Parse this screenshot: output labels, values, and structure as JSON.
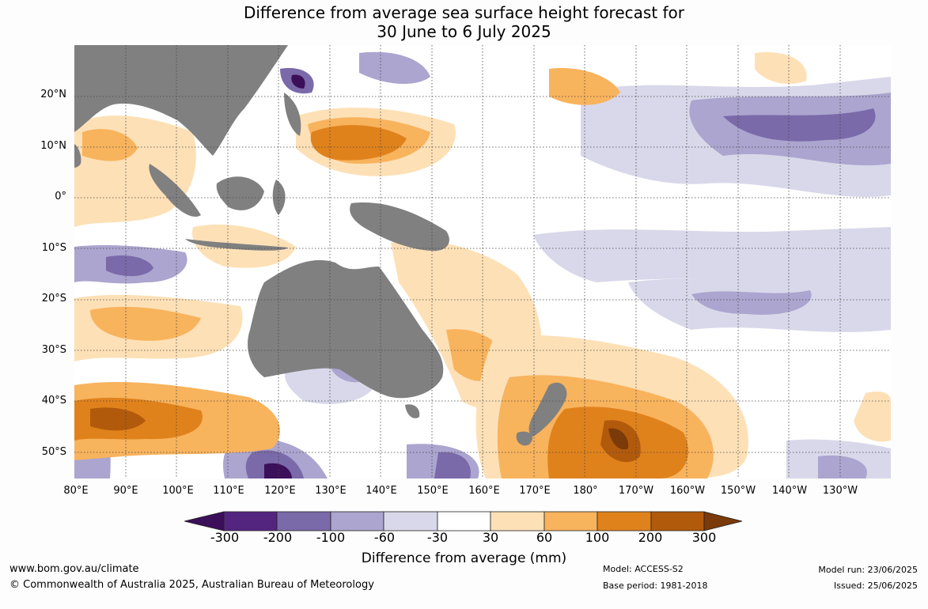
{
  "title": {
    "line1": "Difference from average sea surface height forecast for",
    "line2": "30 June to 6 July 2025"
  },
  "lat_labels": [
    "20°N",
    "10°N",
    "0°",
    "10°S",
    "20°S",
    "30°S",
    "40°S",
    "50°S"
  ],
  "lon_labels": [
    "80°E",
    "90°E",
    "100°E",
    "110°E",
    "120°E",
    "130°E",
    "140°E",
    "150°E",
    "160°E",
    "170°E",
    "180°",
    "170°W",
    "160°W",
    "150°W",
    "140°W",
    "130°W"
  ],
  "colorbar": {
    "ticks": [
      "-300",
      "-200",
      "-100",
      "-60",
      "-30",
      "30",
      "60",
      "100",
      "200",
      "300"
    ],
    "colors": [
      "#3b0f5a",
      "#54257f",
      "#7a6aa9",
      "#aba5cf",
      "#d9d8ea",
      "#ffffff",
      "#fde0b6",
      "#f8b35d",
      "#e0821c",
      "#b25a0c",
      "#7a3a09"
    ],
    "title": "Difference from average (mm)"
  },
  "land_color": "#808080",
  "footer": {
    "url": "www.bom.gov.au/climate",
    "copyright": "© Commonwealth of Australia 2025, Australian Bureau of Meteorology",
    "model": "Model: ACCESS-S2",
    "base_period": "Base period: 1981-2018",
    "model_run": "Model run: 23/06/2025",
    "issued": "Issued: 25/06/2025"
  }
}
